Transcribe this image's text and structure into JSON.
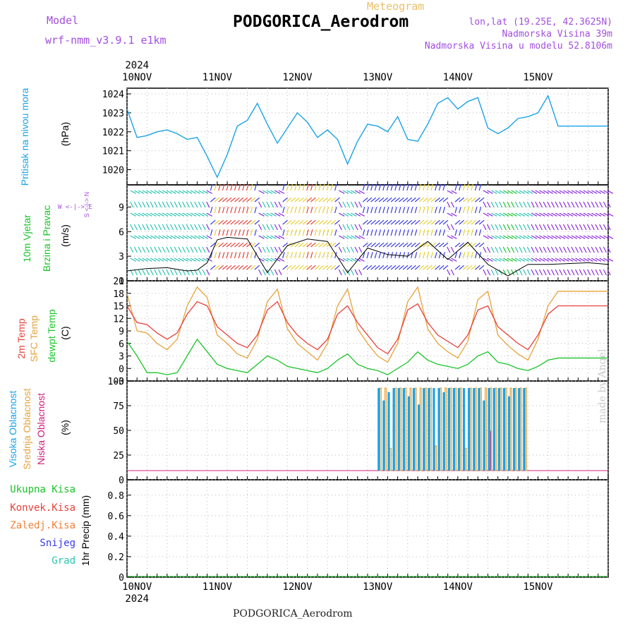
{
  "header": {
    "model_label": "Model",
    "model_name": "wrf-nmm_v3.9.1 e1km",
    "app_title": "Meteogram",
    "station": "PODGORICA_Aerodrom",
    "coords": "lon,lat (19.25E, 42.3625N)",
    "elevation": "Nadmorska Visina 39m",
    "model_elevation": "Nadmorska Visina u modelu 52.8106m"
  },
  "footer": {
    "station": "PODGORICA_Aerodrom",
    "credit": "made by Angel"
  },
  "colors": {
    "pressure": "#1aa3e8",
    "t2m": "#e8413a",
    "sfc": "#e6a33c",
    "dewpt": "#18c428",
    "high_cloud": "#1aa3e8",
    "mid_cloud": "#e6a33c",
    "low_cloud": "#d0207a",
    "wind_speed": "#000000",
    "grid": "#999999"
  },
  "panel_labels": {
    "pressure": {
      "name": "Pritisak na nivou mora",
      "unit": "(hPa)"
    },
    "wind": {
      "name1": "10m Vjetar",
      "name2": "Brzina i Pravac",
      "unit": "(m/s)",
      "compass": "W <-|-> E",
      "compass_ns": "S <-|-> N"
    },
    "temp": {
      "t2m": "2m Temp",
      "sfc": "SFC Temp",
      "dew": "dewpt Temp",
      "unit": "(C)"
    },
    "cloud": {
      "high": "Visoka Oblacnost",
      "mid": "Srednja Oblacnost",
      "low": "Niska Oblacnost",
      "unit": "(%)"
    },
    "precip": {
      "unit": "1hr Precip (mm)"
    }
  },
  "precip_legend": [
    {
      "label": "Ukupna Kisa",
      "color": "#18c428"
    },
    {
      "label": "Konvek.Kisa",
      "color": "#e8413a"
    },
    {
      "label": "Zaledj.Kisa",
      "color": "#f0803a"
    },
    {
      "label": "Snijeg",
      "color": "#3a3ae8"
    },
    {
      "label": "Grad",
      "color": "#2ac4b0"
    }
  ],
  "chart_data": [
    {
      "type": "line",
      "name": "pressure",
      "x_days": [
        "10NOV",
        "11NOV",
        "12NOV",
        "13NOV",
        "14NOV",
        "15NOV"
      ],
      "year": "2024",
      "yticks": [
        1020,
        1021,
        1022,
        1023,
        1024
      ],
      "ylim": [
        1019.2,
        1024.3
      ],
      "x_hours": [
        0,
        3,
        6,
        9,
        12,
        15,
        18,
        21,
        24,
        27,
        30,
        33,
        36,
        39,
        42,
        45,
        48,
        51,
        54,
        57,
        60,
        63,
        66,
        69,
        72,
        75,
        78,
        81,
        84,
        87,
        90,
        93,
        96,
        99,
        102,
        105,
        108,
        111,
        114,
        117,
        120,
        123,
        126,
        129,
        132,
        135,
        138,
        141,
        144
      ],
      "series": [
        {
          "name": "Pritisak na nivou mora",
          "values": [
            1023.2,
            1021.7,
            1021.8,
            1022.0,
            1022.1,
            1021.9,
            1021.6,
            1021.7,
            1020.7,
            1019.6,
            1020.8,
            1022.3,
            1022.6,
            1023.5,
            1022.4,
            1021.4,
            1022.2,
            1023.0,
            1022.5,
            1021.7,
            1022.1,
            1021.6,
            1020.3,
            1021.5,
            1022.4,
            1022.3,
            1022.0,
            1022.8,
            1021.6,
            1021.5,
            1022.4,
            1023.5,
            1023.8,
            1023.2,
            1023.6,
            1023.8,
            1022.2,
            1021.9,
            1022.2,
            1022.7,
            1022.8,
            1023.0,
            1023.9,
            1022.3,
            1022.3,
            1022.3,
            1022.3,
            1022.3,
            1022.3
          ]
        }
      ]
    },
    {
      "type": "line",
      "name": "wind",
      "yticks": [
        0,
        3,
        6,
        9
      ],
      "ylim": [
        0,
        11.7
      ],
      "x_hours": [
        0,
        6,
        12,
        18,
        21,
        24,
        27,
        30,
        36,
        42,
        48,
        54,
        60,
        66,
        72,
        78,
        84,
        90,
        96,
        102,
        108,
        114,
        120,
        126,
        132,
        138,
        144
      ],
      "series": [
        {
          "name": "Brzina",
          "values": [
            1.2,
            1.5,
            1.6,
            1.2,
            1.3,
            2.2,
            5.0,
            5.3,
            5.1,
            1.0,
            4.3,
            5.1,
            4.8,
            1.0,
            4.0,
            3.2,
            3.0,
            4.8,
            2.6,
            4.7,
            2.0,
            0.6,
            2.0,
            2.0,
            2.1,
            2.2,
            2.0
          ]
        }
      ]
    },
    {
      "type": "line",
      "name": "temperature",
      "yticks": [
        -3,
        0,
        3,
        6,
        9,
        12,
        15,
        18,
        21
      ],
      "ylim": [
        -3,
        21
      ],
      "x_hours": [
        0,
        3,
        6,
        9,
        12,
        15,
        18,
        21,
        24,
        27,
        30,
        33,
        36,
        39,
        42,
        45,
        48,
        51,
        54,
        57,
        60,
        63,
        66,
        69,
        72,
        75,
        78,
        81,
        84,
        87,
        90,
        93,
        96,
        99,
        102,
        105,
        108,
        111,
        114,
        117,
        120,
        123,
        126,
        129,
        132,
        135,
        138,
        141,
        144
      ],
      "series": [
        {
          "name": "2m Temp",
          "values": [
            15.0,
            11.0,
            10.5,
            8.5,
            7.0,
            8.5,
            13.0,
            16.0,
            15.0,
            10.0,
            8.0,
            6.0,
            5.0,
            8.0,
            14.0,
            16.0,
            11.0,
            8.0,
            6.0,
            4.5,
            7.0,
            13.0,
            15.0,
            11.0,
            8.0,
            5.0,
            3.5,
            7.0,
            14.0,
            15.5,
            11.0,
            8.0,
            6.5,
            5.0,
            8.0,
            14.0,
            15.0,
            10.0,
            8.0,
            6.0,
            4.5,
            8.0,
            13.0,
            15.0,
            15.0,
            15.0,
            15.0,
            15.0,
            15.0
          ]
        },
        {
          "name": "SFC Temp",
          "values": [
            18.0,
            9.0,
            8.5,
            6.0,
            4.5,
            7.0,
            15.0,
            19.5,
            17.0,
            8.0,
            6.0,
            3.5,
            2.5,
            7.0,
            16.0,
            19.0,
            9.5,
            6.0,
            4.0,
            2.0,
            6.0,
            15.0,
            19.0,
            9.5,
            6.0,
            3.0,
            1.5,
            6.0,
            16.0,
            19.5,
            9.5,
            6.0,
            4.0,
            2.5,
            6.5,
            16.5,
            18.5,
            8.0,
            5.5,
            3.5,
            2.0,
            7.0,
            15.0,
            18.5,
            18.5,
            18.5,
            18.5,
            18.5,
            18.5
          ]
        },
        {
          "name": "dewpt Temp",
          "values": [
            6.5,
            3.0,
            -1.0,
            -1.0,
            -1.5,
            -1.0,
            3.0,
            7.0,
            4.0,
            1.0,
            0.0,
            -0.5,
            -1.0,
            1.0,
            3.0,
            2.0,
            0.5,
            0.0,
            -0.5,
            -1.0,
            0.0,
            2.0,
            3.5,
            1.0,
            0.0,
            -0.5,
            -1.5,
            0.0,
            1.5,
            4.0,
            2.0,
            1.0,
            0.5,
            0.0,
            1.0,
            3.0,
            4.0,
            1.5,
            1.0,
            0.0,
            -0.5,
            0.5,
            2.0,
            2.5,
            2.5,
            2.5,
            2.5,
            2.5,
            2.5
          ]
        }
      ]
    },
    {
      "type": "bar",
      "name": "cloud",
      "yticks": [
        0,
        25,
        50,
        75,
        100
      ],
      "ylim": [
        0,
        100
      ],
      "x_hours_start": 75,
      "x_hours_end": 120,
      "series": [
        {
          "name": "Visoka Oblacnost",
          "values": [
            100,
            85,
            95,
            100,
            100,
            100,
            90,
            100,
            80,
            100,
            100,
            100,
            100,
            95,
            100,
            100,
            100,
            100,
            100,
            100,
            100,
            85,
            100,
            100,
            100,
            100,
            90,
            100,
            100,
            100
          ]
        },
        {
          "name": "Srednja Oblacnost",
          "values": [
            100,
            100,
            27,
            100,
            100,
            100,
            100,
            100,
            100,
            100,
            100,
            30,
            100,
            100,
            100,
            100,
            100,
            27,
            100,
            100,
            100,
            100,
            100,
            100,
            100,
            100,
            100,
            100,
            100,
            100
          ]
        },
        {
          "name": "Niska Oblacnost",
          "values": [
            0,
            0,
            0,
            0,
            0,
            0,
            0,
            0,
            0,
            0,
            0,
            0,
            0,
            0,
            0,
            0,
            0,
            0,
            0,
            0,
            0,
            0,
            48,
            0,
            0,
            0,
            0,
            0,
            0,
            0
          ]
        }
      ]
    },
    {
      "type": "line",
      "name": "precipitation",
      "yticks": [
        0,
        0.2,
        0.4,
        0.6,
        0.8
      ],
      "ylim": [
        0,
        0.95
      ],
      "series": [
        {
          "name": "Ukupna Kisa",
          "values": [
            0
          ]
        },
        {
          "name": "Konvek.Kisa",
          "values": [
            0
          ]
        },
        {
          "name": "Zaledj.Kisa",
          "values": [
            0
          ]
        },
        {
          "name": "Snijeg",
          "values": [
            0
          ]
        },
        {
          "name": "Grad",
          "values": [
            0
          ]
        }
      ]
    }
  ]
}
